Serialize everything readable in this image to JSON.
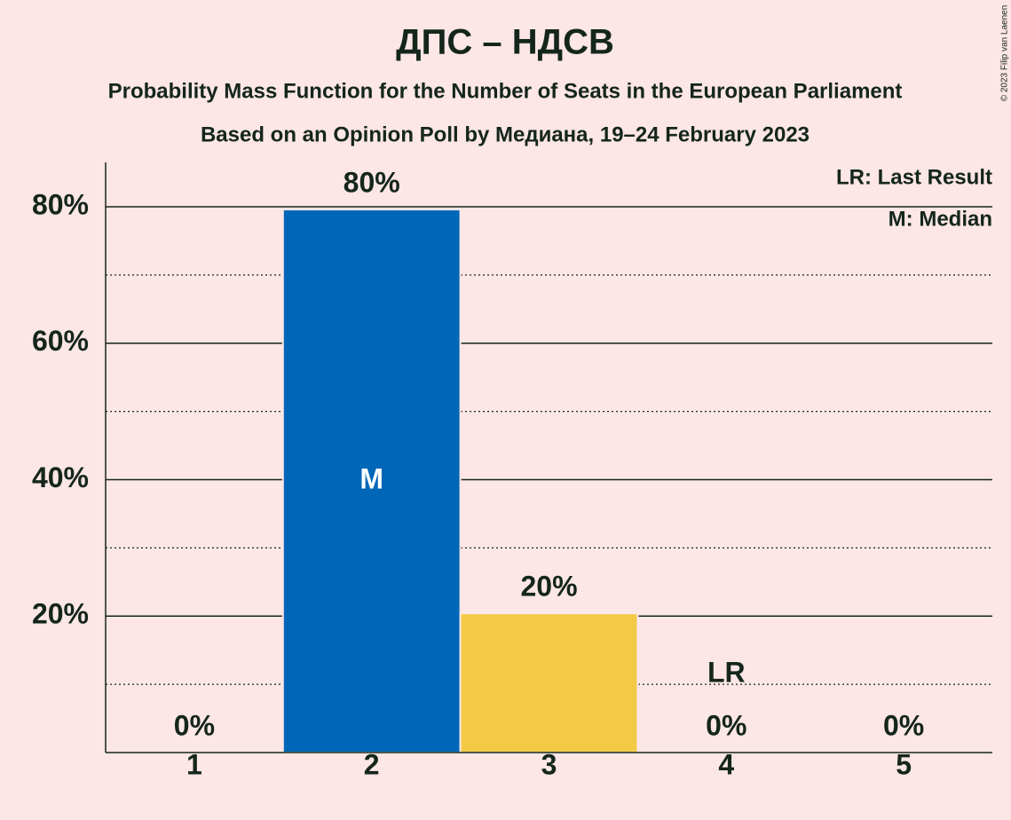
{
  "chart_data": {
    "type": "bar",
    "title": "ДПС – НДСВ",
    "subtitle": "Probability Mass Function for the Number of Seats in the European Parliament",
    "subtitle2": "Based on an Opinion Poll by Медиана, 19–24 February 2023",
    "categories": [
      "1",
      "2",
      "3",
      "4",
      "5"
    ],
    "values": [
      0,
      79.6,
      20.4,
      0,
      0
    ],
    "value_labels": [
      "0%",
      "80%",
      "20%",
      "0%",
      "0%"
    ],
    "colors": [
      "#0066b8",
      "#0066b8",
      "#f3ca43",
      "#0066b8",
      "#0066b8"
    ],
    "ylim": [
      0,
      86.5
    ],
    "yticks": [
      {
        "value": 20,
        "label": "20%"
      },
      {
        "value": 40,
        "label": "40%"
      },
      {
        "value": 60,
        "label": "60%"
      },
      {
        "value": 80,
        "label": "80%"
      }
    ],
    "minor_yticks": [
      10,
      30,
      50,
      70
    ],
    "grid": true,
    "median": {
      "category": "2",
      "label": "M"
    },
    "last_result": {
      "category": "4",
      "label": "LR"
    },
    "legend": [
      "LR: Last Result",
      "M: Median"
    ],
    "copyright": "© 2023 Filip van Laenen"
  }
}
